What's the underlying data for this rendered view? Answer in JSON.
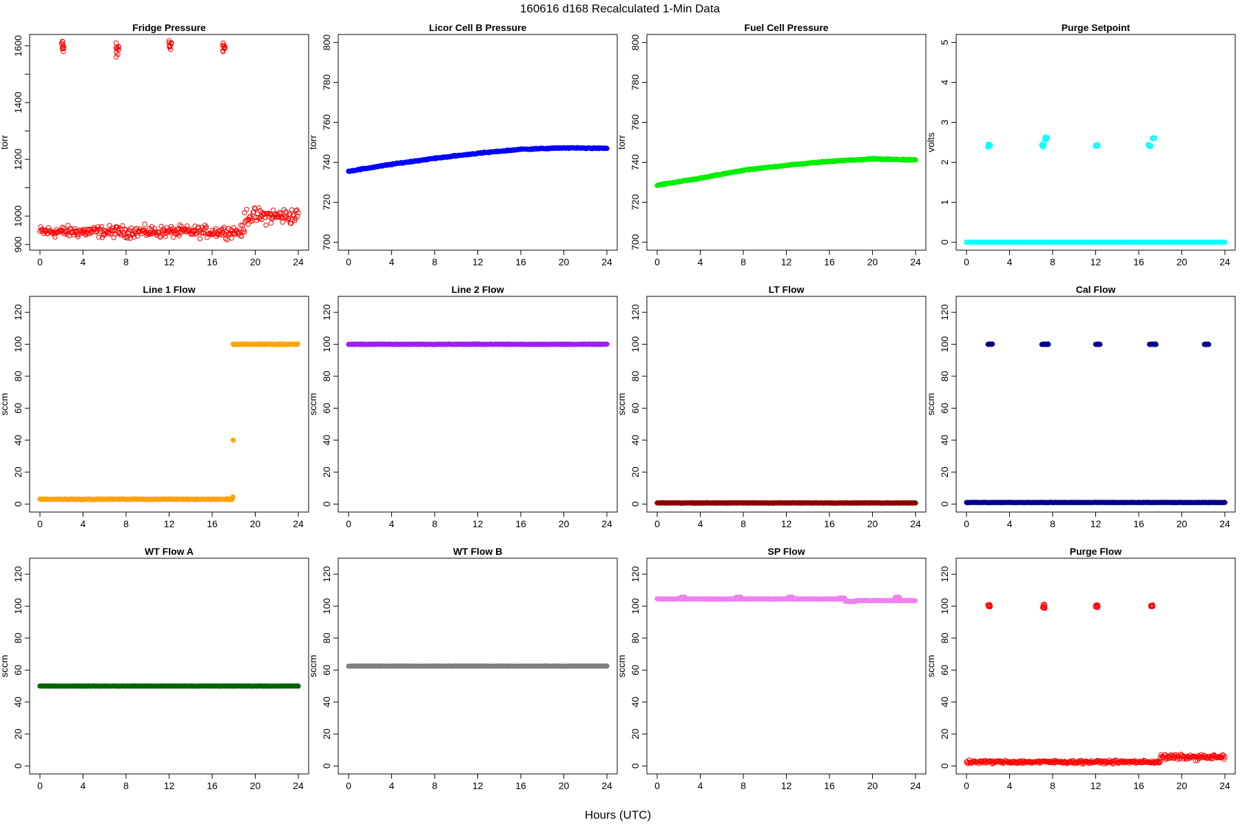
{
  "page": {
    "title": "160616   d168   Recalculated 1-Min Data",
    "xlabel": "Hours (UTC)"
  },
  "chart_data": [
    {
      "type": "scatter",
      "title": "Fridge Pressure",
      "ylabel": "torr",
      "xlim": [
        0,
        24
      ],
      "ylim": [
        880,
        1640
      ],
      "yticks": [
        900,
        1000,
        1200,
        1400,
        1600
      ],
      "yminor": [
        1100,
        1300,
        1500
      ],
      "xticks": [
        0,
        4,
        8,
        12,
        16,
        20,
        24
      ],
      "color": "#ff0000",
      "filled": false,
      "data": {
        "baseline": [
          {
            "x": [
              0,
              19
            ],
            "y": 945,
            "noise": 25
          },
          {
            "x": [
              19,
              24
            ],
            "y": 1000,
            "noise": 35
          }
        ],
        "events": [
          {
            "x": 2.1,
            "y": 1600,
            "spread": 30
          },
          {
            "x": 7.2,
            "y": 1590,
            "spread": 30
          },
          {
            "x": 12.1,
            "y": 1605,
            "spread": 30
          },
          {
            "x": 17.1,
            "y": 1595,
            "spread": 25
          }
        ]
      }
    },
    {
      "type": "scatter",
      "title": "Licor Cell B Pressure",
      "ylabel": "torr",
      "xlim": [
        0,
        24
      ],
      "ylim": [
        696,
        804
      ],
      "yticks": [
        700,
        720,
        740,
        760,
        780,
        800
      ],
      "xticks": [
        0,
        4,
        8,
        12,
        16,
        20,
        24
      ],
      "color": "#0000ff",
      "filled": true,
      "data": {
        "line": [
          [
            0,
            735.5
          ],
          [
            4,
            739
          ],
          [
            8,
            742
          ],
          [
            12,
            744.5
          ],
          [
            16,
            746.5
          ],
          [
            20,
            747.2
          ],
          [
            24,
            747
          ]
        ],
        "noise": 0.3
      }
    },
    {
      "type": "scatter",
      "title": "Fuel Cell Pressure",
      "ylabel": "torr",
      "xlim": [
        0,
        24
      ],
      "ylim": [
        696,
        804
      ],
      "yticks": [
        700,
        720,
        740,
        760,
        780,
        800
      ],
      "xticks": [
        0,
        4,
        8,
        12,
        16,
        20,
        24
      ],
      "color": "#00ee00",
      "filled": true,
      "data": {
        "line": [
          [
            0,
            728.5
          ],
          [
            4,
            732
          ],
          [
            8,
            736
          ],
          [
            12,
            738.5
          ],
          [
            16,
            740.5
          ],
          [
            20,
            741.7
          ],
          [
            24,
            741.2
          ]
        ],
        "noise": 0.3
      }
    },
    {
      "type": "scatter",
      "title": "Purge Setpoint",
      "ylabel": "volts",
      "xlim": [
        0,
        24
      ],
      "ylim": [
        -0.2,
        5.2
      ],
      "yticks": [
        0,
        1,
        2,
        3,
        4,
        5
      ],
      "xticks": [
        0,
        4,
        8,
        12,
        16,
        20,
        24
      ],
      "color": "#00ffff",
      "filled": false,
      "data": {
        "baseline": [
          {
            "x": [
              0,
              24
            ],
            "y": 0,
            "noise": 0
          }
        ],
        "events": [
          {
            "x": 2.1,
            "y": 2.42,
            "spread": 0.06
          },
          {
            "x": 7.1,
            "y": 2.42,
            "spread": 0.06
          },
          {
            "x": 7.4,
            "y": 2.6,
            "spread": 0.04
          },
          {
            "x": 12.1,
            "y": 2.42,
            "spread": 0.05
          },
          {
            "x": 17.0,
            "y": 2.42,
            "spread": 0.05
          },
          {
            "x": 17.4,
            "y": 2.6,
            "spread": 0.03
          }
        ]
      }
    },
    {
      "type": "scatter",
      "title": "Line 1 Flow",
      "ylabel": "sccm",
      "xlim": [
        0,
        24
      ],
      "ylim": [
        -5,
        130
      ],
      "yticks": [
        0,
        20,
        40,
        60,
        80,
        100,
        120
      ],
      "xticks": [
        0,
        4,
        8,
        12,
        16,
        20,
        24
      ],
      "color": "#ffa500",
      "filled": true,
      "data": {
        "baseline": [
          {
            "x": [
              0,
              17.9
            ],
            "y": 3,
            "noise": 0.3
          },
          {
            "x": [
              17.95,
              24
            ],
            "y": 100,
            "noise": 0.3
          }
        ],
        "points": [
          [
            17.95,
            40
          ],
          [
            17.92,
            4.5
          ]
        ]
      }
    },
    {
      "type": "scatter",
      "title": "Line 2 Flow",
      "ylabel": "sccm",
      "xlim": [
        0,
        24
      ],
      "ylim": [
        -5,
        130
      ],
      "yticks": [
        0,
        20,
        40,
        60,
        80,
        100,
        120
      ],
      "xticks": [
        0,
        4,
        8,
        12,
        16,
        20,
        24
      ],
      "color": "#a020f0",
      "filled": true,
      "data": {
        "baseline": [
          {
            "x": [
              0,
              24
            ],
            "y": 100,
            "noise": 0.2
          }
        ]
      }
    },
    {
      "type": "scatter",
      "title": "LT Flow",
      "ylabel": "sccm",
      "xlim": [
        0,
        24
      ],
      "ylim": [
        -5,
        130
      ],
      "yticks": [
        0,
        20,
        40,
        60,
        80,
        100,
        120
      ],
      "xticks": [
        0,
        4,
        8,
        12,
        16,
        20,
        24
      ],
      "color": "#8b0000",
      "filled": true,
      "data": {
        "baseline": [
          {
            "x": [
              0,
              24
            ],
            "y": 0.7,
            "noise": 0.2
          }
        ]
      }
    },
    {
      "type": "scatter",
      "title": "Cal Flow",
      "ylabel": "sccm",
      "xlim": [
        0,
        24
      ],
      "ylim": [
        -5,
        130
      ],
      "yticks": [
        0,
        20,
        40,
        60,
        80,
        100,
        120
      ],
      "xticks": [
        0,
        4,
        8,
        12,
        16,
        20,
        24
      ],
      "color": "#00008b",
      "filled": true,
      "data": {
        "baseline": [
          {
            "x": [
              0,
              24
            ],
            "y": 1,
            "noise": 0.1
          }
        ],
        "segments": [
          [
            2.0,
            2.4,
            100
          ],
          [
            7.0,
            7.6,
            100
          ],
          [
            12.0,
            12.4,
            100
          ],
          [
            17.0,
            17.6,
            100
          ],
          [
            22.1,
            22.5,
            100
          ]
        ]
      }
    },
    {
      "type": "scatter",
      "title": "WT Flow A",
      "ylabel": "sccm",
      "xlim": [
        0,
        24
      ],
      "ylim": [
        -5,
        130
      ],
      "yticks": [
        0,
        20,
        40,
        60,
        80,
        100,
        120
      ],
      "xticks": [
        0,
        4,
        8,
        12,
        16,
        20,
        24
      ],
      "color": "#006400",
      "filled": true,
      "data": {
        "baseline": [
          {
            "x": [
              0,
              24
            ],
            "y": 50,
            "noise": 0.1
          }
        ]
      }
    },
    {
      "type": "scatter",
      "title": "WT Flow B",
      "ylabel": "sccm",
      "xlim": [
        0,
        24
      ],
      "ylim": [
        -5,
        130
      ],
      "yticks": [
        0,
        20,
        40,
        60,
        80,
        100,
        120
      ],
      "xticks": [
        0,
        4,
        8,
        12,
        16,
        20,
        24
      ],
      "color": "#808080",
      "filled": true,
      "data": {
        "baseline": [
          {
            "x": [
              0,
              24
            ],
            "y": 62.5,
            "noise": 0.1
          }
        ]
      }
    },
    {
      "type": "scatter",
      "title": "SP Flow",
      "ylabel": "sccm",
      "xlim": [
        0,
        24
      ],
      "ylim": [
        -5,
        130
      ],
      "yticks": [
        0,
        20,
        40,
        60,
        80,
        100,
        120
      ],
      "xticks": [
        0,
        4,
        8,
        12,
        16,
        20,
        24
      ],
      "color": "#ee82ee",
      "filled": true,
      "data": {
        "baseline": [
          {
            "x": [
              0,
              17.5
            ],
            "y": 104.5,
            "noise": 0.2
          },
          {
            "x": [
              17.5,
              18.5
            ],
            "y": 103,
            "noise": 0.3
          },
          {
            "x": [
              18.5,
              24
            ],
            "y": 103.5,
            "noise": 0.2
          }
        ],
        "segments": [
          [
            2.2,
            2.6,
            105.5
          ],
          [
            7.3,
            7.8,
            105.5
          ],
          [
            12.2,
            12.6,
            105.5
          ],
          [
            16.9,
            17.4,
            105
          ],
          [
            22.1,
            22.5,
            105.5
          ]
        ]
      }
    },
    {
      "type": "scatter",
      "title": "Purge Flow",
      "ylabel": "sccm",
      "xlim": [
        0,
        24
      ],
      "ylim": [
        -5,
        130
      ],
      "yticks": [
        0,
        20,
        40,
        60,
        80,
        100,
        120
      ],
      "xticks": [
        0,
        4,
        8,
        12,
        16,
        20,
        24
      ],
      "color": "#ff0000",
      "filled": false,
      "data": {
        "baseline": [
          {
            "x": [
              0,
              18
            ],
            "y": 2.5,
            "noise": 1.2
          },
          {
            "x": [
              18,
              24
            ],
            "y": 5.5,
            "noise": 2.0
          }
        ],
        "events": [
          {
            "x": 2.1,
            "y": 100,
            "spread": 1.5
          },
          {
            "x": 7.2,
            "y": 100,
            "spread": 1.5
          },
          {
            "x": 12.1,
            "y": 100,
            "spread": 1.5
          },
          {
            "x": 17.2,
            "y": 100,
            "spread": 1.5
          }
        ]
      }
    }
  ]
}
